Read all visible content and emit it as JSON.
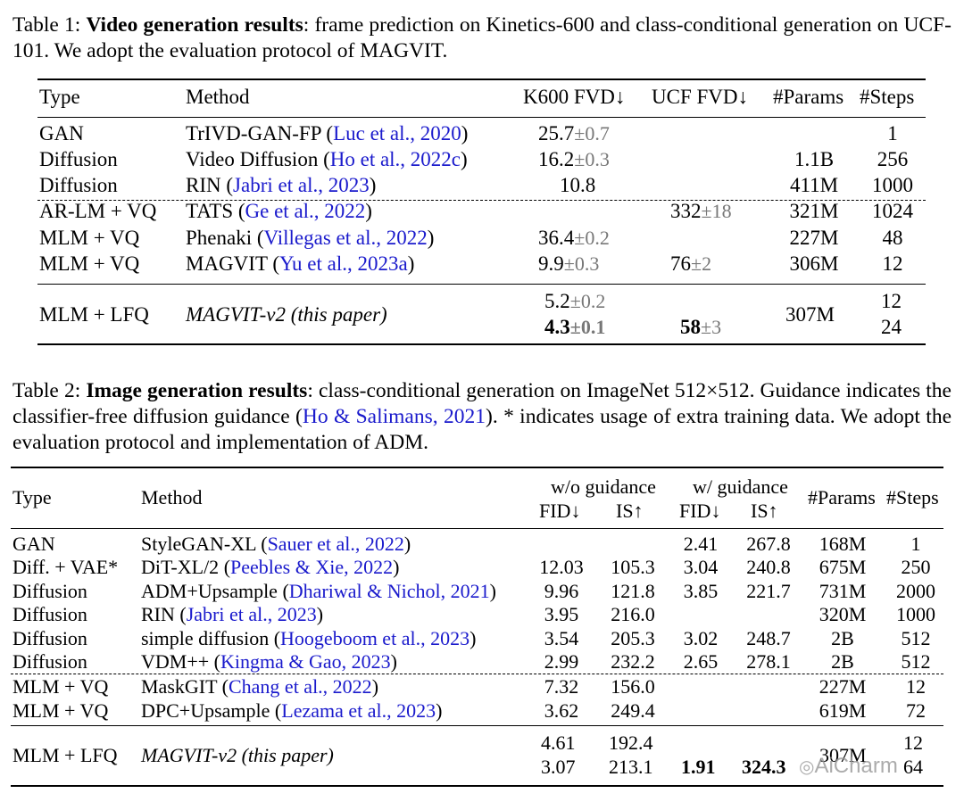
{
  "table1": {
    "caption_label": "Table 1:",
    "caption_bold": "Video generation results",
    "caption_text": ": frame prediction on Kinetics-600 and class-conditional generation on UCF-101. We adopt the evaluation protocol of MAGVIT.",
    "headers": [
      "Type",
      "Method",
      "K600 FVD↓",
      "UCF FVD↓",
      "#Params",
      "#Steps"
    ],
    "rows": [
      {
        "type": "GAN",
        "method": "TrIVD-GAN-FP",
        "cite": "Luc et al., 2020",
        "k600": "25.7",
        "k600_pm": "±0.7",
        "ucf": "",
        "ucf_pm": "",
        "params": "",
        "steps": "1"
      },
      {
        "type": "Diffusion",
        "method": "Video Diffusion",
        "cite": "Ho et al., 2022c",
        "k600": "16.2",
        "k600_pm": "±0.3",
        "ucf": "",
        "ucf_pm": "",
        "params": "1.1B",
        "steps": "256"
      },
      {
        "type": "Diffusion",
        "method": "RIN",
        "cite": "Jabri et al., 2023",
        "k600": "10.8",
        "k600_pm": "",
        "ucf": "",
        "ucf_pm": "",
        "params": "411M",
        "steps": "1000"
      },
      {
        "type": "AR-LM + VQ",
        "method": "TATS",
        "cite": "Ge et al., 2022",
        "k600": "",
        "k600_pm": "",
        "ucf": "332",
        "ucf_pm": "±18",
        "params": "321M",
        "steps": "1024"
      },
      {
        "type": "MLM + VQ",
        "method": "Phenaki",
        "cite": "Villegas et al., 2022",
        "k600": "36.4",
        "k600_pm": "±0.2",
        "ucf": "",
        "ucf_pm": "",
        "params": "227M",
        "steps": "48"
      },
      {
        "type": "MLM + VQ",
        "method": "MAGVIT",
        "cite": "Yu et al., 2023a",
        "k600": "9.9",
        "k600_pm": "±0.3",
        "ucf": "76",
        "ucf_pm": "±2",
        "params": "306M",
        "steps": "12"
      }
    ],
    "ours": {
      "type": "MLM + LFQ",
      "method": "MAGVIT-v2 (this paper)",
      "k600_a": "5.2",
      "k600_a_pm": "±0.2",
      "k600_b": "4.3",
      "k600_b_pm": "±0.1",
      "ucf_b": "58",
      "ucf_b_pm": "±3",
      "params": "307M",
      "steps_a": "12",
      "steps_b": "24"
    }
  },
  "table2": {
    "caption_label": "Table 2:",
    "caption_bold": "Image generation results",
    "caption_text_1": ": class-conditional generation on ImageNet 512×512. Guidance indicates the classifier-free diffusion guidance (",
    "caption_cite": "Ho & Salimans, 2021",
    "caption_text_2": "). * indicates usage of extra training data. We adopt the evaluation protocol and implementation of ADM.",
    "headers": {
      "type": "Type",
      "method": "Method",
      "wo_guidance": "w/o guidance",
      "w_guidance": "w/ guidance",
      "fid": "FID↓",
      "is": "IS↑",
      "params": "#Params",
      "steps": "#Steps"
    },
    "rows": [
      {
        "type": "GAN",
        "method": "StyleGAN-XL",
        "cite": "Sauer et al., 2022",
        "fid1": "",
        "is1": "",
        "fid2": "2.41",
        "is2": "267.8",
        "params": "168M",
        "steps": "1"
      },
      {
        "type": "Diff. + VAE*",
        "method": "DiT-XL/2",
        "cite": "Peebles & Xie, 2022",
        "fid1": "12.03",
        "is1": "105.3",
        "fid2": "3.04",
        "is2": "240.8",
        "params": "675M",
        "steps": "250"
      },
      {
        "type": "Diffusion",
        "method": "ADM+Upsample",
        "cite": "Dhariwal & Nichol, 2021",
        "fid1": "9.96",
        "is1": "121.8",
        "fid2": "3.85",
        "is2": "221.7",
        "params": "731M",
        "steps": "2000"
      },
      {
        "type": "Diffusion",
        "method": "RIN",
        "cite": "Jabri et al., 2023",
        "fid1": "3.95",
        "is1": "216.0",
        "fid2": "",
        "is2": "",
        "params": "320M",
        "steps": "1000"
      },
      {
        "type": "Diffusion",
        "method": "simple diffusion",
        "cite": "Hoogeboom et al., 2023",
        "fid1": "3.54",
        "is1": "205.3",
        "fid2": "3.02",
        "is2": "248.7",
        "params": "2B",
        "steps": "512"
      },
      {
        "type": "Diffusion",
        "method": "VDM++",
        "cite": "Kingma & Gao, 2023",
        "fid1": "2.99",
        "is1": "232.2",
        "fid2": "2.65",
        "is2": "278.1",
        "params": "2B",
        "steps": "512"
      },
      {
        "type": "MLM + VQ",
        "method": "MaskGIT",
        "cite": "Chang et al., 2022",
        "fid1": "7.32",
        "is1": "156.0",
        "fid2": "",
        "is2": "",
        "params": "227M",
        "steps": "12"
      },
      {
        "type": "MLM + VQ",
        "method": "DPC+Upsample",
        "cite": "Lezama et al., 2023",
        "fid1": "3.62",
        "is1": "249.4",
        "fid2": "",
        "is2": "",
        "params": "619M",
        "steps": "72"
      }
    ],
    "ours": {
      "type": "MLM + LFQ",
      "method": "MAGVIT-v2 (this paper)",
      "fid1_a": "4.61",
      "is1_a": "192.4",
      "fid1_b": "3.07",
      "is1_b": "213.1",
      "fid2_b": "1.91",
      "is2_b": "324.3",
      "params": "307M",
      "steps_a": "12",
      "steps_b": "64"
    }
  },
  "watermark": "AiCharm",
  "colors": {
    "cite": "#1a1acc",
    "pm": "#777777"
  }
}
